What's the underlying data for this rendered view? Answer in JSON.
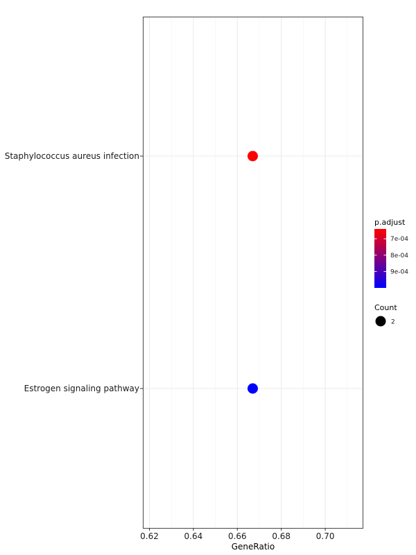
{
  "chart_data": {
    "type": "scatter",
    "title": "",
    "xlabel": "GeneRatio",
    "ylabel": "",
    "xlim": [
      0.617,
      0.717
    ],
    "x_ticks": [
      0.62,
      0.64,
      0.66,
      0.68,
      0.7
    ],
    "x_tick_labels": [
      "0.62",
      "0.64",
      "0.66",
      "0.68",
      "0.70"
    ],
    "categories": [
      "Staphylococcus aureus infection",
      "Estrogen signaling pathway"
    ],
    "points": [
      {
        "category": "Staphylococcus aureus infection",
        "x": 0.667,
        "count": 2,
        "p_adjust": 0.00064
      },
      {
        "category": "Estrogen signaling pathway",
        "x": 0.667,
        "count": 2,
        "p_adjust": 0.001
      }
    ],
    "grid": true,
    "legend": {
      "position": "right",
      "color": {
        "title": "p.adjust",
        "range": [
          0.00064,
          0.001
        ],
        "low_color": "#ff0000",
        "high_color": "#0000ff",
        "breaks": [
          0.0007,
          0.0008,
          0.0009
        ],
        "labels": [
          "7e-04",
          "8e-04",
          "9e-04"
        ]
      },
      "size": {
        "title": "Count",
        "breaks": [
          2
        ],
        "labels": [
          "2"
        ]
      }
    }
  }
}
